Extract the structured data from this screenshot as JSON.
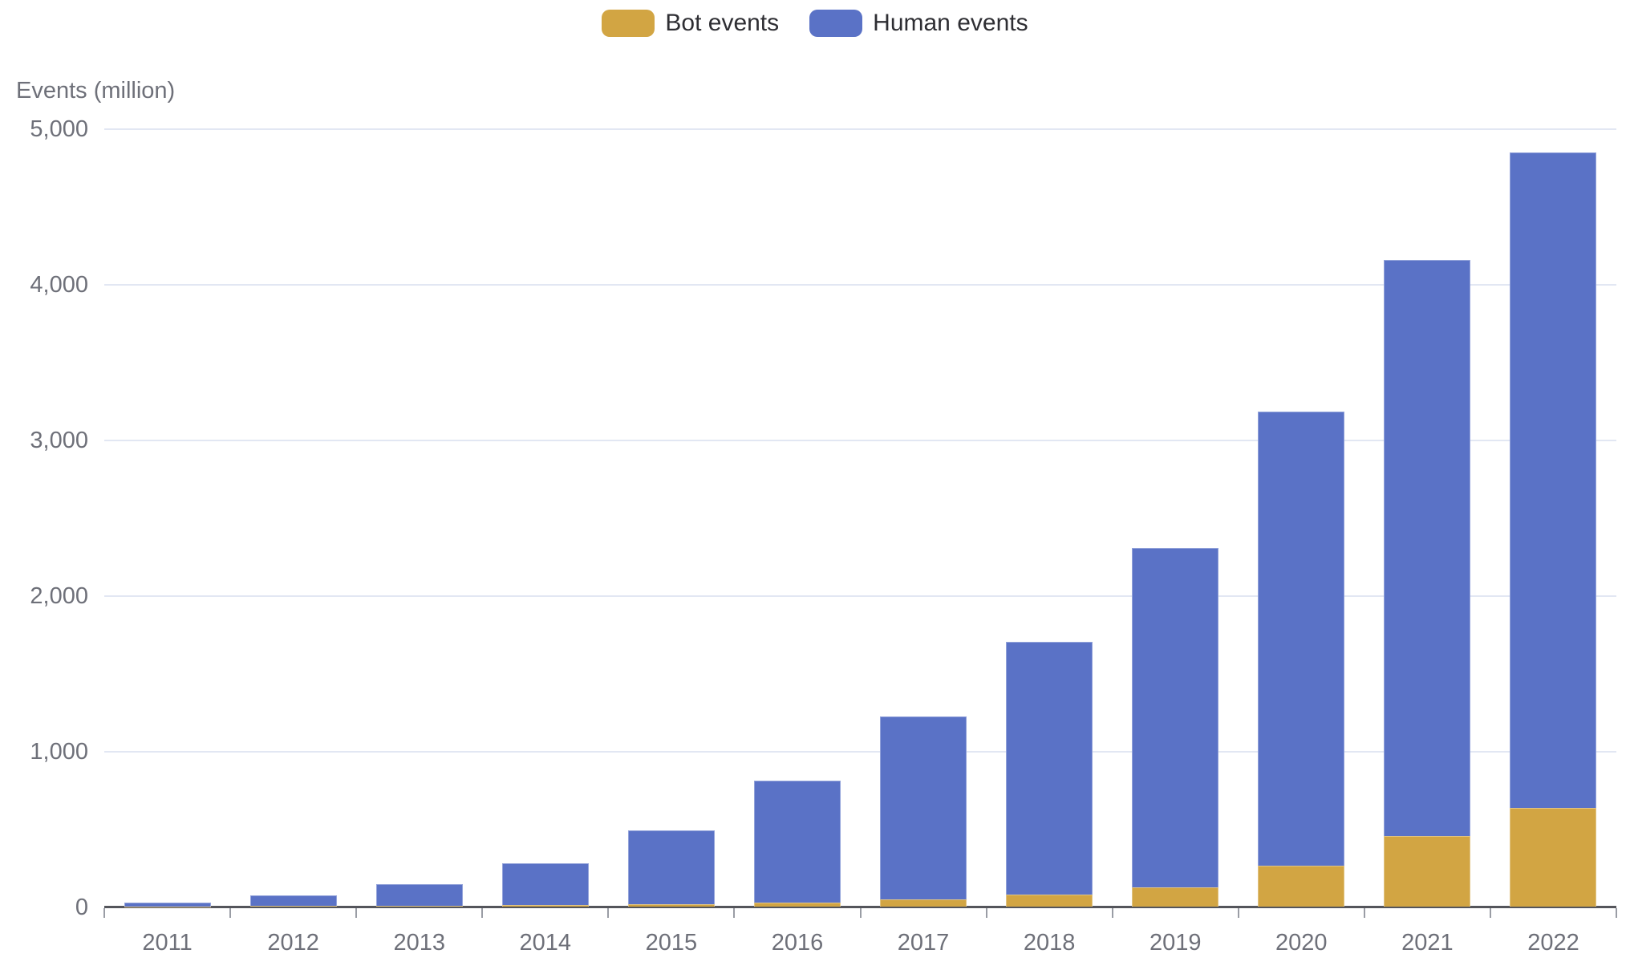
{
  "chart_data": {
    "type": "bar",
    "stacked": true,
    "title": "",
    "ylabel": "Events (million)",
    "xlabel": "",
    "categories": [
      "2011",
      "2012",
      "2013",
      "2014",
      "2015",
      "2016",
      "2017",
      "2018",
      "2019",
      "2020",
      "2021",
      "2022"
    ],
    "series": [
      {
        "name": "Bot events",
        "color": "#d2a543",
        "values": [
          2,
          3,
          5,
          8,
          15,
          25,
          45,
          75,
          125,
          265,
          455,
          635
        ]
      },
      {
        "name": "Human events",
        "color": "#5a72c6",
        "values": [
          24,
          67,
          140,
          268,
          475,
          785,
          1175,
          1625,
          2180,
          2915,
          3700,
          4210
        ]
      }
    ],
    "ylim": [
      0,
      5000
    ],
    "ytick_interval": 1000,
    "ytick_labels": [
      "0",
      "1,000",
      "2,000",
      "3,000",
      "4,000",
      "5,000"
    ],
    "grid": true,
    "legend_position": "top-center"
  },
  "colors": {
    "grid_line": "#e2e7f3",
    "axis_line": "#54555b",
    "axis_tick": "#9a9da5",
    "tick_text": "#6e7079",
    "legend_text": "#2e2e33",
    "background": "#ffffff"
  }
}
